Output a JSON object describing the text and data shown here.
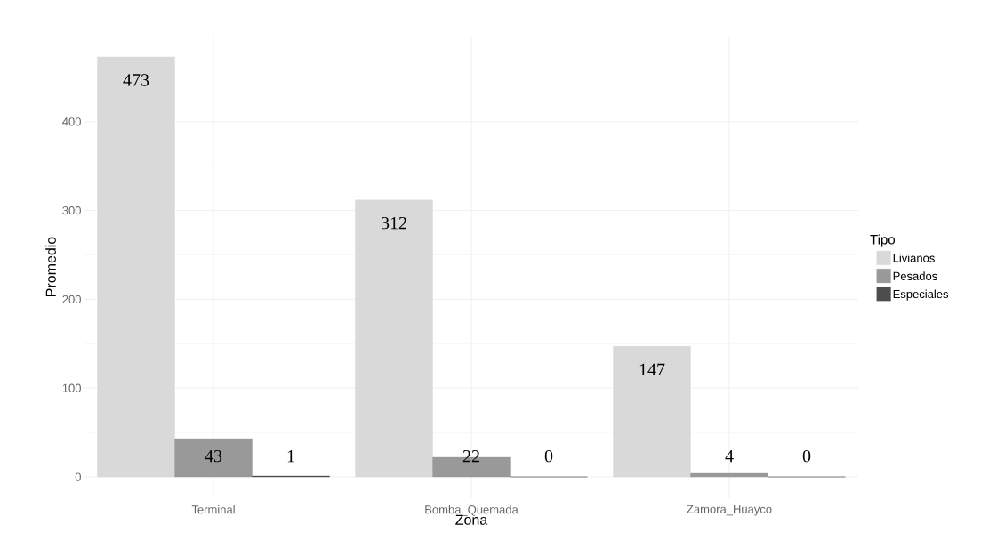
{
  "chart_data": {
    "type": "bar",
    "xlabel": "Zona",
    "ylabel": "Promedio",
    "legend_title": "Tipo",
    "categories": [
      "Terminal",
      "Bomba_Quemada",
      "Zamora_Huayco"
    ],
    "series": [
      {
        "name": "Livianos",
        "color": "#d9d9d9",
        "values": [
          473,
          312,
          147
        ]
      },
      {
        "name": "Pesados",
        "color": "#999999",
        "values": [
          43,
          22,
          4
        ]
      },
      {
        "name": "Especiales",
        "color": "#4d4d4d",
        "values": [
          1,
          0,
          0
        ]
      }
    ],
    "ylim": [
      -24,
      497
    ],
    "yticks": [
      0,
      100,
      200,
      300,
      400
    ],
    "grid": true,
    "legend": "right",
    "data_labels": true
  }
}
